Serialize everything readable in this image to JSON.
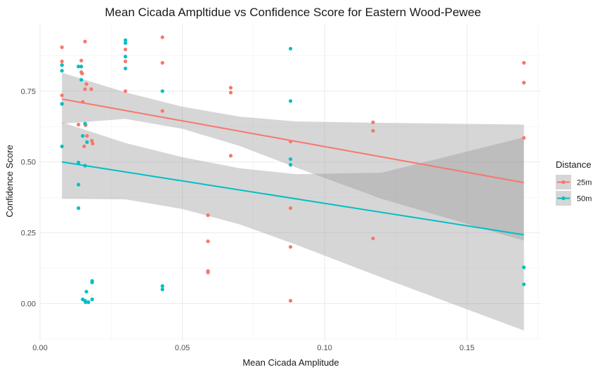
{
  "chart_data": {
    "type": "scatter",
    "title": "Mean Cicada Ampltidue vs Confidence Score for Eastern Wood-Pewee",
    "xlabel": "Mean Cicada Amplitude",
    "ylabel": "Confidence Score",
    "xlim": [
      0.0,
      0.176
    ],
    "ylim": [
      -0.13,
      0.985
    ],
    "x_ticks": [
      0.0,
      0.05,
      0.1,
      0.15
    ],
    "x_tick_labels": [
      "0.00",
      "0.05",
      "0.10",
      "0.15"
    ],
    "y_ticks": [
      0.0,
      0.25,
      0.5,
      0.75
    ],
    "y_tick_labels": [
      "0.00",
      "0.25",
      "0.50",
      "0.75"
    ],
    "grid": true,
    "legend": {
      "title": "Distance",
      "position": "right"
    },
    "series": [
      {
        "name": "25m",
        "color": "#F8766D",
        "points": [
          [
            0.0077,
            0.905
          ],
          [
            0.0077,
            0.855
          ],
          [
            0.0077,
            0.842
          ],
          [
            0.0077,
            0.735
          ],
          [
            0.0077,
            0.705
          ],
          [
            0.0135,
            0.632
          ],
          [
            0.0145,
            0.858
          ],
          [
            0.0145,
            0.817
          ],
          [
            0.0148,
            0.812
          ],
          [
            0.015,
            0.712
          ],
          [
            0.0155,
            0.555
          ],
          [
            0.0158,
            0.925
          ],
          [
            0.0158,
            0.757
          ],
          [
            0.016,
            0.63
          ],
          [
            0.0163,
            0.775
          ],
          [
            0.0165,
            0.592
          ],
          [
            0.018,
            0.757
          ],
          [
            0.0182,
            0.575
          ],
          [
            0.0185,
            0.565
          ],
          [
            0.03,
            0.897
          ],
          [
            0.03,
            0.855
          ],
          [
            0.03,
            0.75
          ],
          [
            0.043,
            0.94
          ],
          [
            0.043,
            0.85
          ],
          [
            0.043,
            0.68
          ],
          [
            0.059,
            0.312
          ],
          [
            0.059,
            0.22
          ],
          [
            0.059,
            0.115
          ],
          [
            0.059,
            0.11
          ],
          [
            0.067,
            0.762
          ],
          [
            0.067,
            0.745
          ],
          [
            0.067,
            0.522
          ],
          [
            0.088,
            0.572
          ],
          [
            0.088,
            0.337
          ],
          [
            0.088,
            0.2
          ],
          [
            0.088,
            0.01
          ],
          [
            0.117,
            0.64
          ],
          [
            0.117,
            0.61
          ],
          [
            0.117,
            0.23
          ],
          [
            0.17,
            0.85
          ],
          [
            0.17,
            0.78
          ],
          [
            0.17,
            0.585
          ]
        ],
        "fit": {
          "x": [
            0.0077,
            0.17
          ],
          "y": [
            0.722,
            0.427
          ]
        }
      },
      {
        "name": "50m",
        "color": "#00BFC4",
        "points": [
          [
            0.0077,
            0.842
          ],
          [
            0.0077,
            0.822
          ],
          [
            0.0077,
            0.705
          ],
          [
            0.0077,
            0.555
          ],
          [
            0.0135,
            0.837
          ],
          [
            0.0135,
            0.498
          ],
          [
            0.0135,
            0.42
          ],
          [
            0.0135,
            0.337
          ],
          [
            0.0145,
            0.837
          ],
          [
            0.0145,
            0.79
          ],
          [
            0.015,
            0.592
          ],
          [
            0.015,
            0.015
          ],
          [
            0.0158,
            0.635
          ],
          [
            0.0158,
            0.487
          ],
          [
            0.0158,
            0.01
          ],
          [
            0.016,
            0.005
          ],
          [
            0.0163,
            0.042
          ],
          [
            0.0165,
            0.57
          ],
          [
            0.017,
            0.005
          ],
          [
            0.0183,
            0.08
          ],
          [
            0.0183,
            0.075
          ],
          [
            0.0183,
            0.015
          ],
          [
            0.03,
            0.93
          ],
          [
            0.03,
            0.92
          ],
          [
            0.03,
            0.872
          ],
          [
            0.03,
            0.83
          ],
          [
            0.043,
            0.75
          ],
          [
            0.043,
            0.062
          ],
          [
            0.043,
            0.05
          ],
          [
            0.088,
            0.9
          ],
          [
            0.088,
            0.715
          ],
          [
            0.088,
            0.51
          ],
          [
            0.088,
            0.49
          ],
          [
            0.17,
            0.128
          ],
          [
            0.17,
            0.068
          ]
        ],
        "fit": {
          "x": [
            0.0077,
            0.17
          ],
          "y": [
            0.5,
            0.243
          ]
        }
      }
    ],
    "confidence_bands": [
      {
        "series": "25m",
        "upper": [
          [
            0.0077,
            0.815
          ],
          [
            0.03,
            0.746
          ],
          [
            0.05,
            0.695
          ],
          [
            0.07,
            0.66
          ],
          [
            0.09,
            0.643
          ],
          [
            0.12,
            0.638
          ],
          [
            0.17,
            0.632
          ]
        ],
        "lower": [
          [
            0.0077,
            0.635
          ],
          [
            0.03,
            0.652
          ],
          [
            0.05,
            0.617
          ],
          [
            0.07,
            0.557
          ],
          [
            0.09,
            0.48
          ],
          [
            0.12,
            0.37
          ],
          [
            0.17,
            0.222
          ]
        ]
      },
      {
        "series": "50m",
        "upper": [
          [
            0.0077,
            0.64
          ],
          [
            0.03,
            0.567
          ],
          [
            0.05,
            0.517
          ],
          [
            0.07,
            0.478
          ],
          [
            0.09,
            0.457
          ],
          [
            0.12,
            0.462
          ],
          [
            0.17,
            0.587
          ]
        ],
        "lower": [
          [
            0.0077,
            0.37
          ],
          [
            0.03,
            0.368
          ],
          [
            0.05,
            0.334
          ],
          [
            0.07,
            0.28
          ],
          [
            0.09,
            0.208
          ],
          [
            0.12,
            0.092
          ],
          [
            0.17,
            -0.095
          ]
        ]
      }
    ]
  }
}
